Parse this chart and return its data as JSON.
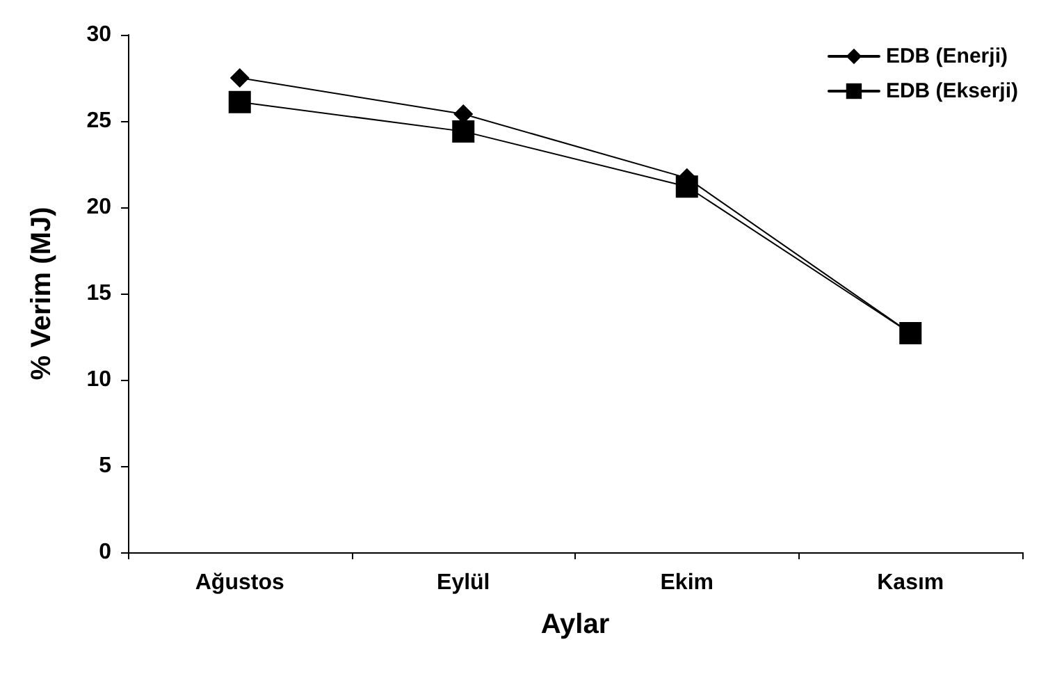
{
  "chart_data": {
    "type": "line",
    "xlabel": "Aylar",
    "ylabel": "% Verim (MJ)",
    "categories": [
      "Ağustos",
      "Eylül",
      "Ekim",
      "Kasım"
    ],
    "series": [
      {
        "name": "EDB (Enerji)",
        "color": "#000000",
        "marker": "diamond",
        "values": [
          27.5,
          25.4,
          21.7,
          12.7
        ]
      },
      {
        "name": "EDB (Ekserji)",
        "color": "#000000",
        "marker": "square",
        "values": [
          26.1,
          24.4,
          21.2,
          12.7
        ]
      }
    ],
    "ylim": [
      0,
      30
    ],
    "yticks": [
      0,
      5,
      10,
      15,
      20,
      25,
      30
    ],
    "grid": false,
    "legend": "top right",
    "line_style": "solid"
  }
}
